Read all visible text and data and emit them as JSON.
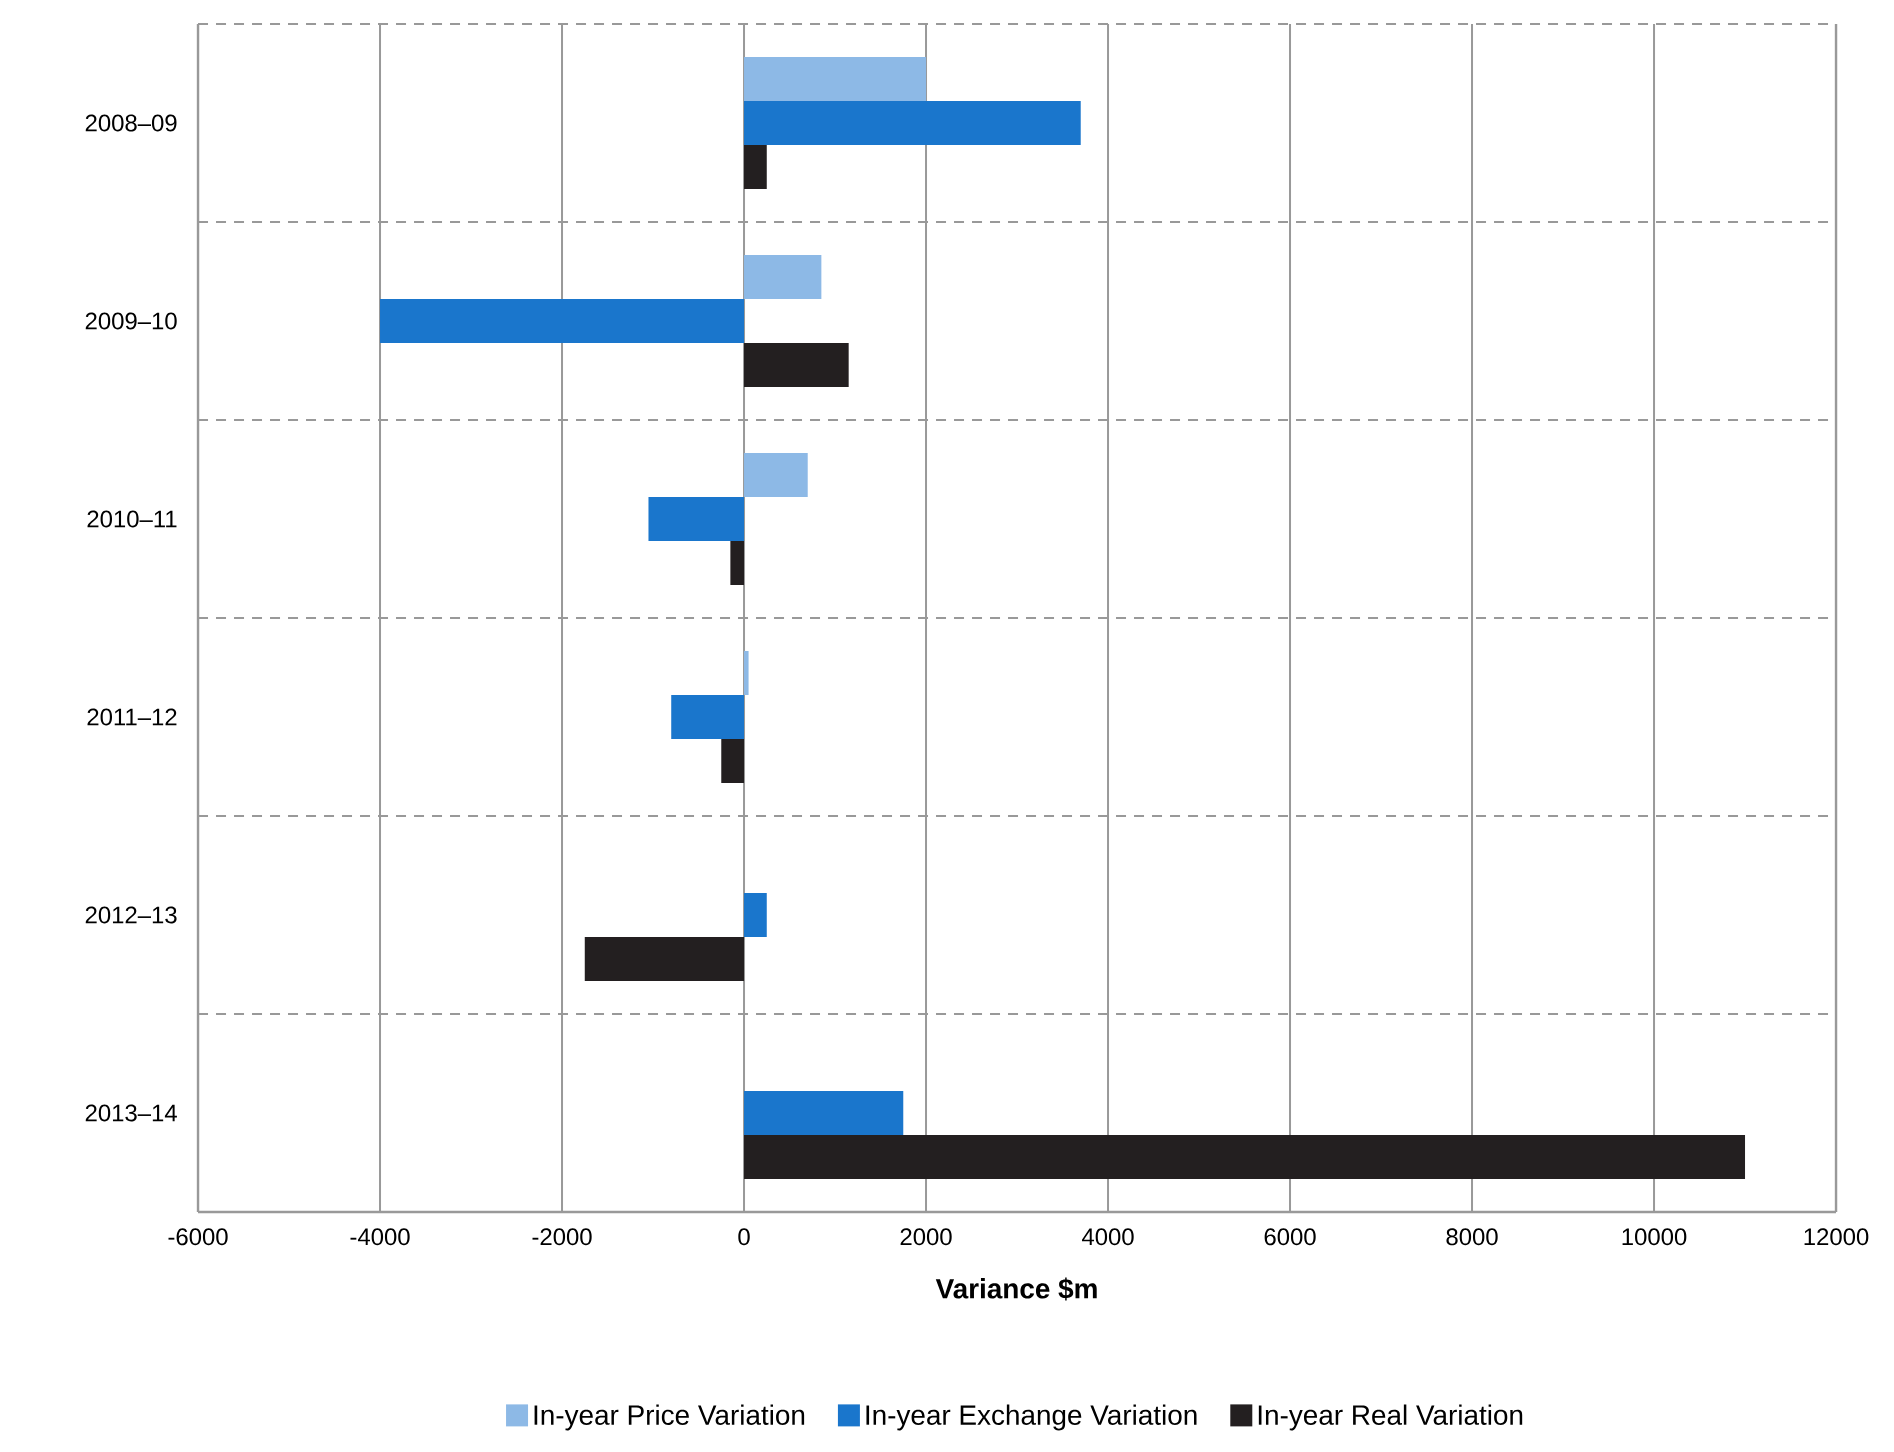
{
  "chart_data": {
    "type": "bar",
    "orientation": "horizontal",
    "xlabel": "Variance $m",
    "categories": [
      "2008–09",
      "2009–10",
      "2010–11",
      "2011–12",
      "2012–13",
      "2013–14"
    ],
    "series": [
      {
        "name": "In-year Price Variation",
        "color": "#8db9e6",
        "values": [
          2000,
          850,
          700,
          50,
          0,
          0
        ]
      },
      {
        "name": "In-year Exchange Variation",
        "color": "#1a76cc",
        "values": [
          3700,
          -4000,
          -1050,
          -800,
          250,
          1750
        ]
      },
      {
        "name": "In-year Real Variation",
        "color": "#231f20",
        "values": [
          250,
          1150,
          -150,
          -250,
          -1750,
          11000
        ]
      }
    ],
    "xlim": [
      -6000,
      12000
    ],
    "xticks": [
      -6000,
      -4000,
      -2000,
      0,
      2000,
      4000,
      6000,
      8000,
      10000,
      12000
    ],
    "grid": "x",
    "legend": "bottom"
  }
}
